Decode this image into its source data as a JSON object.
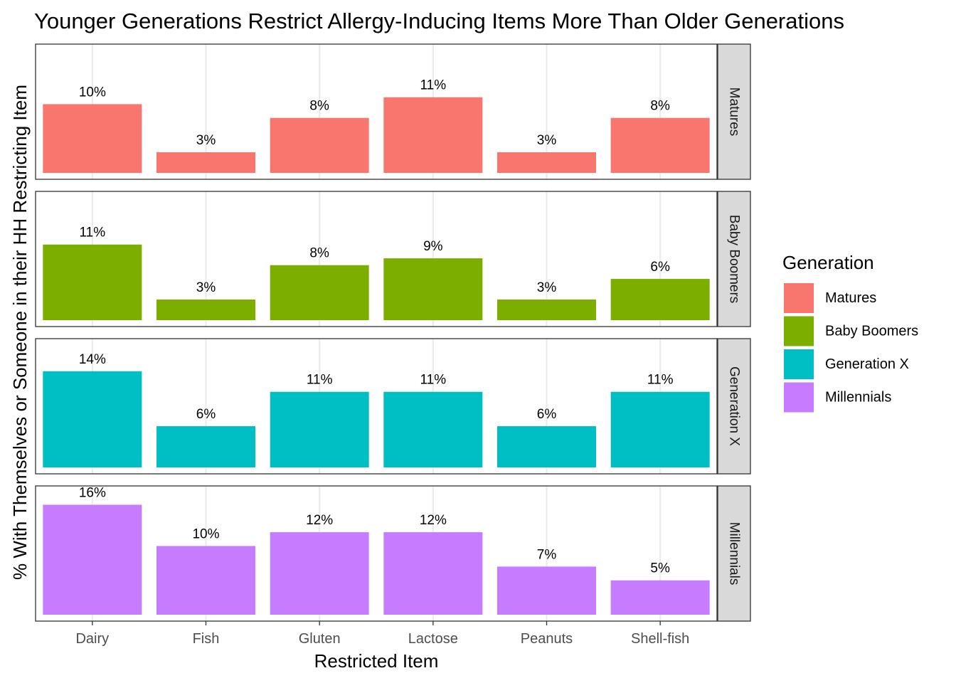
{
  "chart_data": {
    "type": "bar",
    "title": "Younger Generations Restrict Allergy-Inducing Items More Than Older Generations",
    "xlabel": "Restricted Item",
    "ylabel": "% With Themselves or Someone in their HH Restricting Item",
    "categories": [
      "Dairy",
      "Fish",
      "Gluten",
      "Lactose",
      "Peanuts",
      "Shell-fish"
    ],
    "ylim": [
      0,
      17
    ],
    "grid": true,
    "legend_position": "right",
    "legend_title": "Generation",
    "facets": [
      "Matures",
      "Baby Boomers",
      "Generation X",
      "Millennials"
    ],
    "series": [
      {
        "name": "Matures",
        "color": "#F8766D",
        "values": [
          10,
          3,
          8,
          11,
          3,
          8
        ],
        "labels": [
          "10%",
          "3%",
          "8%",
          "11%",
          "3%",
          "8%"
        ]
      },
      {
        "name": "Baby Boomers",
        "color": "#7CAE00",
        "values": [
          11,
          3,
          8,
          9,
          3,
          6
        ],
        "labels": [
          "11%",
          "3%",
          "8%",
          "9%",
          "3%",
          "6%"
        ]
      },
      {
        "name": "Generation X",
        "color": "#00BFC4",
        "values": [
          14,
          6,
          11,
          11,
          6,
          11
        ],
        "labels": [
          "14%",
          "6%",
          "11%",
          "11%",
          "6%",
          "11%"
        ]
      },
      {
        "name": "Millennials",
        "color": "#C77CFF",
        "values": [
          16,
          10,
          12,
          12,
          7,
          5
        ],
        "labels": [
          "16%",
          "10%",
          "12%",
          "12%",
          "7%",
          "5%"
        ]
      }
    ]
  }
}
